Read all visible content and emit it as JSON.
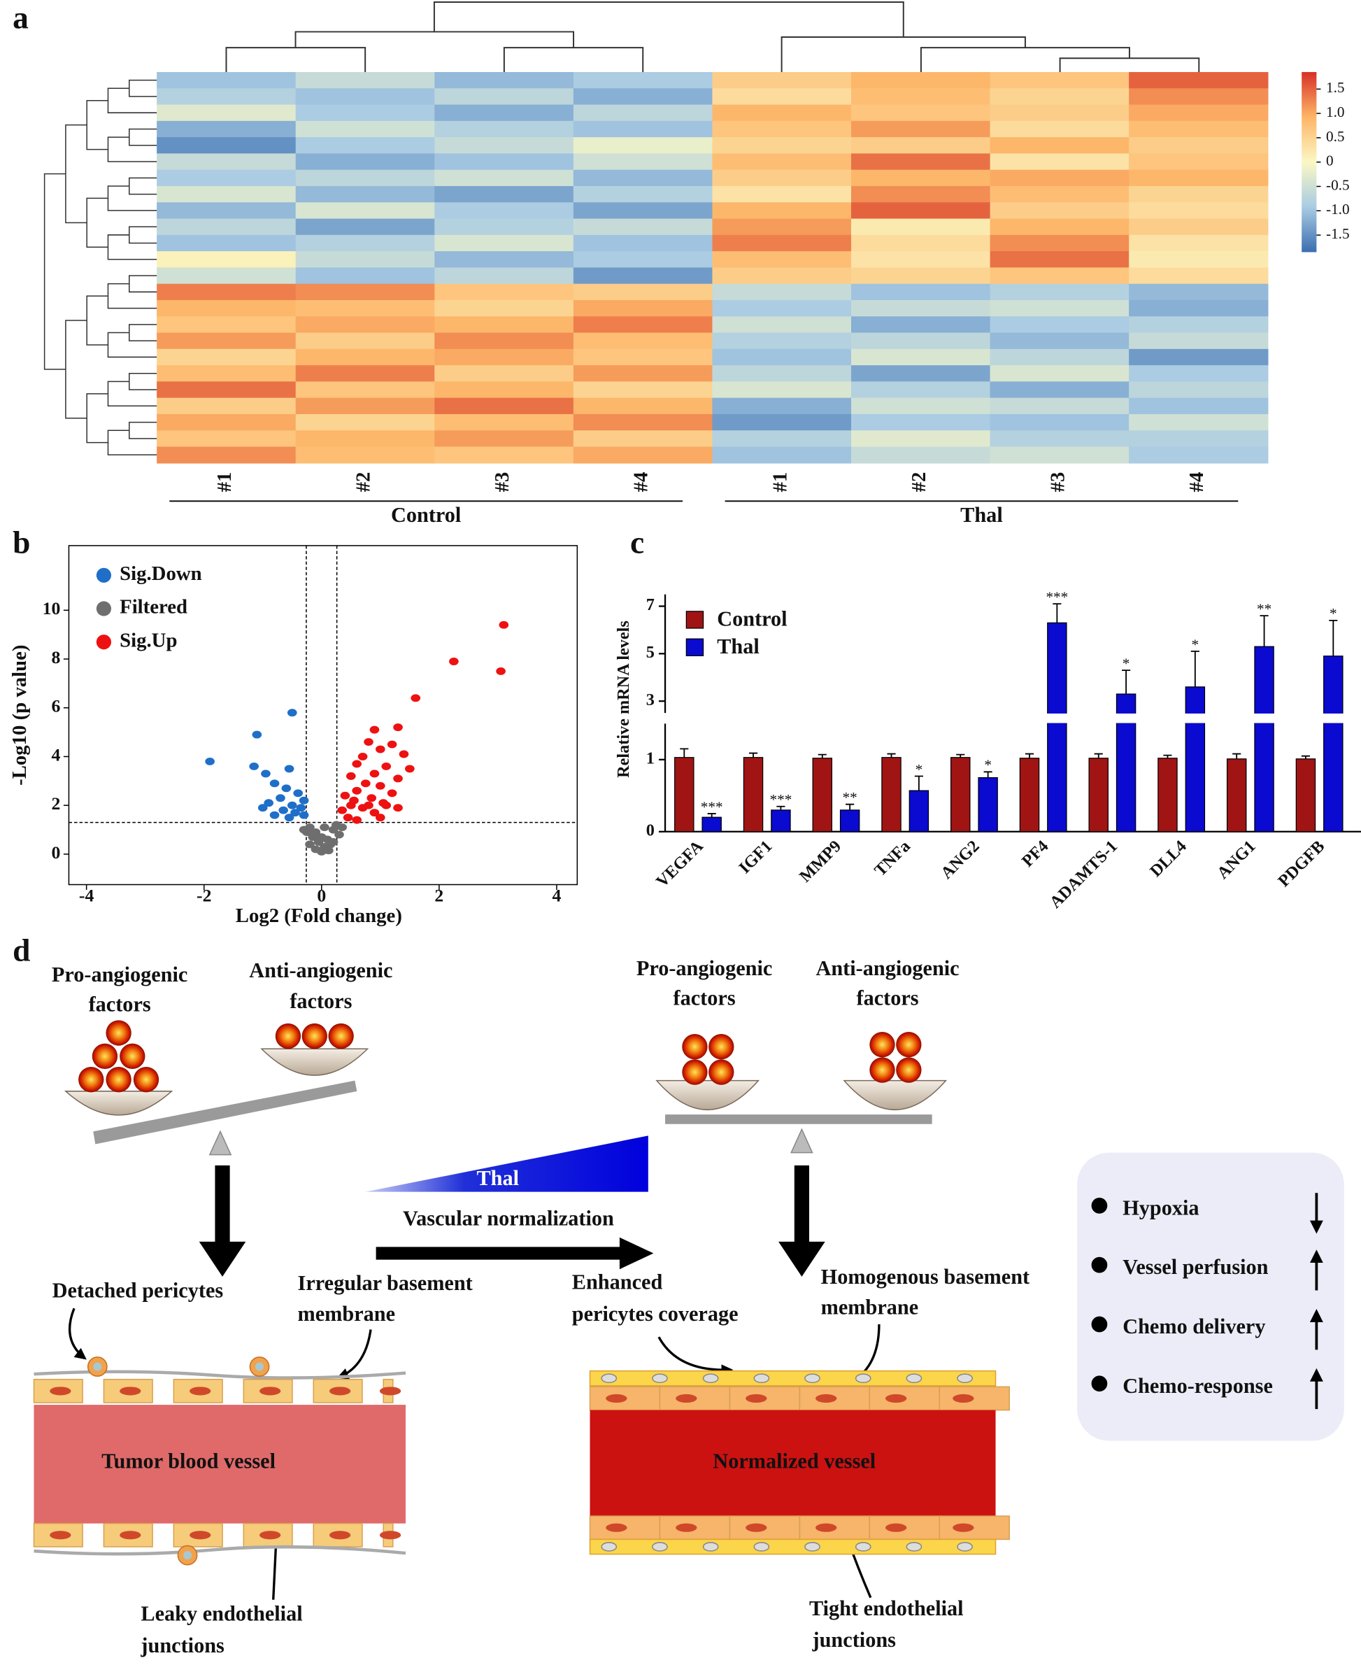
{
  "panel_labels": [
    "a",
    "b",
    "c",
    "d"
  ],
  "chart_data": [
    {
      "type": "heatmap",
      "groups": [
        {
          "name": "Control",
          "columns": [
            "#1",
            "#2",
            "#3",
            "#4"
          ]
        },
        {
          "name": "Thal",
          "columns": [
            "#1",
            "#2",
            "#3",
            "#4"
          ]
        }
      ],
      "values": [
        [
          -1.0,
          -0.6,
          -1.1,
          -0.9,
          0.6,
          0.9,
          0.7,
          1.5
        ],
        [
          -0.8,
          -1.0,
          -0.7,
          -1.2,
          0.4,
          0.8,
          0.5,
          1.2
        ],
        [
          -0.3,
          -0.9,
          -1.2,
          -0.7,
          0.9,
          0.7,
          0.6,
          1.0
        ],
        [
          -1.2,
          -0.5,
          -0.8,
          -1.0,
          0.7,
          1.1,
          0.4,
          0.8
        ],
        [
          -1.5,
          -0.9,
          -0.6,
          -0.2,
          0.5,
          0.6,
          0.9,
          0.6
        ],
        [
          -0.6,
          -1.2,
          -1.0,
          -0.5,
          0.8,
          1.4,
          0.3,
          0.7
        ],
        [
          -0.9,
          -0.7,
          -0.5,
          -1.1,
          0.6,
          0.9,
          1.0,
          0.9
        ],
        [
          -0.4,
          -1.1,
          -1.3,
          -0.8,
          0.3,
          1.2,
          0.8,
          0.5
        ],
        [
          -1.1,
          -0.4,
          -0.9,
          -1.3,
          0.9,
          1.5,
          0.6,
          0.4
        ],
        [
          -0.7,
          -1.3,
          -0.8,
          -0.6,
          1.1,
          0.2,
          0.9,
          0.6
        ],
        [
          -1.0,
          -0.8,
          -0.4,
          -1.0,
          1.3,
          0.4,
          1.2,
          0.3
        ],
        [
          0.1,
          -0.6,
          -1.1,
          -0.9,
          0.8,
          0.3,
          1.4,
          0.2
        ],
        [
          -0.5,
          -1.0,
          -0.7,
          -1.4,
          0.6,
          0.5,
          0.7,
          0.4
        ],
        [
          1.3,
          1.2,
          0.7,
          0.6,
          -0.6,
          -1.0,
          -0.8,
          -1.1
        ],
        [
          0.9,
          0.8,
          0.5,
          1.0,
          -0.9,
          -0.6,
          -0.5,
          -1.2
        ],
        [
          0.7,
          1.0,
          0.9,
          1.3,
          -0.5,
          -1.2,
          -0.9,
          -0.8
        ],
        [
          1.1,
          0.6,
          1.2,
          0.8,
          -0.8,
          -0.7,
          -1.1,
          -0.6
        ],
        [
          0.5,
          0.9,
          1.0,
          0.7,
          -1.0,
          -0.4,
          -0.7,
          -1.4
        ],
        [
          0.8,
          1.3,
          0.6,
          1.1,
          -0.7,
          -1.3,
          -0.4,
          -0.9
        ],
        [
          1.4,
          0.7,
          0.9,
          0.5,
          -0.4,
          -0.8,
          -1.2,
          -0.7
        ],
        [
          0.6,
          1.1,
          1.4,
          0.9,
          -1.2,
          -0.5,
          -0.6,
          -1.0
        ],
        [
          1.0,
          0.5,
          0.8,
          1.2,
          -1.4,
          -0.9,
          -1.0,
          -0.5
        ],
        [
          0.7,
          0.9,
          1.1,
          0.6,
          -0.8,
          -0.3,
          -0.8,
          -0.8
        ],
        [
          1.2,
          0.8,
          0.7,
          1.0,
          -1.0,
          -0.6,
          -0.5,
          -0.9
        ]
      ],
      "clim": [
        -1.85,
        1.85
      ],
      "colorscale": [
        "#3a6eaf",
        "#a9cbe3",
        "#fbf8c4",
        "#fdb567",
        "#d73027"
      ],
      "cticks": [
        1.5,
        {
          "value": 1,
          "label": "1.0"
        },
        0.5,
        0,
        -0.5,
        {
          "value": -1,
          "label": "-1.0"
        },
        -1.5
      ]
    },
    {
      "type": "scatter",
      "x_label": "Log2 (Fold change)",
      "y_label": "-Log10 (p value)",
      "xlim": [
        -4.3,
        4.35
      ],
      "ylim": [
        -1.25,
        12.65
      ],
      "xticks": [
        -4,
        -2,
        0,
        2,
        4
      ],
      "yticks": [
        0,
        2,
        4,
        6,
        8,
        10
      ],
      "thresholds": {
        "x": [
          -0.26,
          0.26
        ],
        "y": 1.3
      },
      "series": [
        {
          "name": "Sig.Down",
          "color": "#1f6fc8",
          "x": [
            -1.9,
            -1.1,
            -0.5,
            -1.15,
            -0.95,
            -0.55,
            -0.8,
            -0.6,
            -0.4,
            -0.7,
            -0.9,
            -0.5,
            -0.3,
            -0.65,
            -0.45,
            -0.3,
            -0.8,
            -1.0,
            -0.55,
            -0.35
          ],
          "y": [
            3.8,
            4.9,
            5.8,
            3.6,
            3.3,
            3.5,
            2.9,
            2.7,
            2.5,
            2.3,
            2.1,
            2.0,
            2.2,
            1.8,
            1.7,
            1.6,
            1.6,
            1.9,
            1.5,
            1.9
          ]
        },
        {
          "name": "Filtered",
          "color": "#6e6e6e",
          "x": [
            -0.2,
            -0.1,
            0.05,
            0,
            -0.05,
            0.1,
            0.2,
            0.15,
            -0.15,
            0.25,
            0.3,
            -0.25,
            0.05,
            -0.1,
            0.12,
            0.35,
            -0.3,
            0,
            0.2,
            -0.2
          ],
          "y": [
            1.1,
            0.9,
            0.3,
            0.1,
            0.5,
            0.6,
            1.0,
            0.4,
            0.7,
            1.2,
            0.8,
            0.9,
            1.1,
            0.2,
            0.15,
            1.1,
            1.0,
            0.7,
            0.5,
            0.4
          ]
        },
        {
          "name": "Sig.Up",
          "color": "#ee1111",
          "x": [
            3.1,
            2.25,
            3.05,
            1.6,
            0.9,
            1.3,
            0.8,
            1.2,
            1.0,
            1.4,
            0.7,
            0.6,
            1.1,
            1.5,
            0.9,
            0.5,
            1.3,
            0.75,
            1.0,
            0.6,
            1.2,
            0.4,
            0.85,
            1.05,
            0.5,
            0.7,
            0.35,
            1.3,
            0.9,
            0.45,
            0.6,
            1.0,
            0.8,
            0.55,
            1.1
          ],
          "y": [
            9.4,
            7.9,
            7.5,
            6.4,
            5.1,
            5.2,
            4.6,
            4.5,
            4.3,
            4.1,
            4.0,
            3.7,
            3.6,
            3.5,
            3.3,
            3.2,
            3.1,
            2.9,
            2.8,
            2.6,
            2.5,
            2.4,
            2.3,
            2.1,
            2.0,
            1.9,
            1.8,
            1.9,
            1.7,
            1.5,
            1.4,
            1.5,
            2.0,
            2.2,
            2.0
          ]
        }
      ]
    },
    {
      "type": "bar",
      "y_label": "Relative mRNA levels",
      "categories": [
        "VEGFA",
        "IGF1",
        "MMP9",
        "TNFa",
        "ANG2",
        "PF4",
        "ADAMTS-1",
        "DLL4",
        "ANG1",
        "PDGFB"
      ],
      "ylim": [
        0,
        7.5
      ],
      "ybreak": [
        1.5,
        2.5
      ],
      "yticks": [
        0,
        1,
        3,
        5,
        7
      ],
      "series": [
        {
          "name": "Control",
          "color": "#a01414",
          "values": [
            1.03,
            1.03,
            1.02,
            1.03,
            1.03,
            1.02,
            1.02,
            1.02,
            1.01,
            1.01
          ],
          "errors": [
            0.12,
            0.06,
            0.05,
            0.05,
            0.04,
            0.06,
            0.06,
            0.04,
            0.07,
            0.04
          ]
        },
        {
          "name": "Thal",
          "color": "#0a0ad0",
          "values": [
            0.2,
            0.3,
            0.3,
            0.57,
            0.75,
            6.3,
            3.3,
            3.6,
            5.3,
            4.9
          ],
          "errors": [
            0.05,
            0.05,
            0.08,
            0.2,
            0.08,
            0.8,
            1.0,
            1.5,
            1.3,
            1.5
          ],
          "annotations": [
            "***",
            "***",
            "**",
            "*",
            "*",
            "***",
            "*",
            "*",
            "**",
            "*"
          ]
        }
      ]
    }
  ],
  "diagram": {
    "left_pro": [
      "Pro-angiogenic",
      "factors"
    ],
    "left_anti": [
      "Anti-angiogenic",
      "factors"
    ],
    "right_pro": [
      "Pro-angiogenic",
      "factors"
    ],
    "right_anti": [
      "Anti-angiogenic",
      "factors"
    ],
    "drug": "Thal",
    "process": "Vascular normalization",
    "detached": "Detached pericytes",
    "irregular": [
      "Irregular basement",
      "membrane"
    ],
    "tumor_vessel": "Tumor  blood  vessel",
    "leaky": [
      "Leaky endothelial",
      "junctions"
    ],
    "enhanced": [
      "Enhanced",
      "pericytes coverage"
    ],
    "homogenous": [
      "Homogenous basement",
      "membrane"
    ],
    "normalized_vessel": "Normalized  vessel",
    "tight": [
      "Tight endothelial",
      "junctions"
    ],
    "outcomes": [
      "Hypoxia",
      "Vessel perfusion",
      "Chemo delivery",
      "Chemo-response"
    ]
  }
}
